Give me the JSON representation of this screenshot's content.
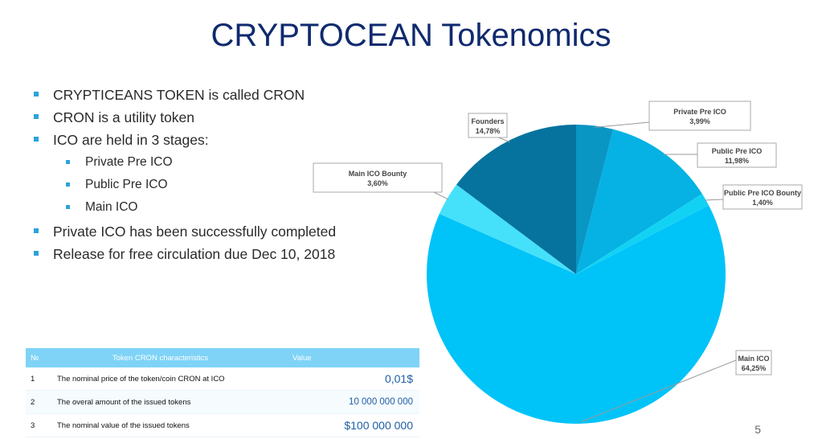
{
  "title": "CRYPTOCEAN Tokenomics",
  "bullets": [
    {
      "text": "CRYPTICEANS TOKEN is called CRON",
      "level": 1
    },
    {
      "text": "CRON is a utility token",
      "level": 1
    },
    {
      "text": "ICO are  held in 3 stages:",
      "level": 1
    },
    {
      "text": "Private Pre ICO",
      "level": 2
    },
    {
      "text": "Public Pre ICO",
      "level": 2
    },
    {
      "text": "Main ICO",
      "level": 2
    },
    {
      "text": "Private ICO has been successfully completed",
      "level": 1
    },
    {
      "text": "Release for free circulation due Dec 10, 2018",
      "level": 1
    }
  ],
  "table": {
    "headers": [
      "№",
      "Token CRON characteristics",
      "Value"
    ],
    "rows": [
      [
        "1",
        "The nominal price of the token/coin CRON at ICO",
        "0,01$"
      ],
      [
        "2",
        "The overal amount of the issued tokens",
        "10 000 000 000"
      ],
      [
        "3",
        "The nominal value of the issued tokens",
        "$100 000 000"
      ]
    ]
  },
  "pie": {
    "slices": [
      {
        "name": "Private Pre ICO",
        "label": "3,99%",
        "value": 3.99,
        "color": "#0a96c3"
      },
      {
        "name": "Public Pre ICO",
        "label": "11,98%",
        "value": 11.98,
        "color": "#05b2e3"
      },
      {
        "name": "Public Pre ICO Bounty",
        "label": "1,40%",
        "value": 1.4,
        "color": "#12d2f4"
      },
      {
        "name": "Main ICO",
        "label": "64,25%",
        "value": 64.25,
        "color": "#00c3f8"
      },
      {
        "name": "Main ICO Bounty",
        "label": "3,60%",
        "value": 3.6,
        "color": "#45e1fb"
      },
      {
        "name": "Founders",
        "label": "14,78%",
        "value": 14.78,
        "color": "#05739d"
      }
    ]
  },
  "page_number": "5"
}
